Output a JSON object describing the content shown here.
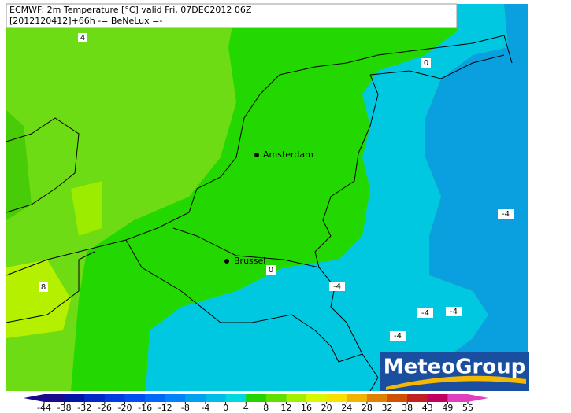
{
  "header": {
    "line1": "ECMWF: 2m Temperature [°C] valid Fri, 07DEC2012 06Z",
    "line2": "[2012120412]+66h  -= BeNeLux =-"
  },
  "cities": [
    {
      "name": "Amsterdam"
    },
    {
      "name": "Brussel"
    }
  ],
  "contour_labels": [
    4,
    0,
    -4,
    8,
    0,
    -4,
    -4,
    -4,
    -4
  ],
  "logo": "MeteoGroup",
  "colorbar": {
    "ticks": [
      -44,
      -38,
      -32,
      -26,
      -20,
      -16,
      -12,
      -8,
      -4,
      0,
      4,
      8,
      12,
      16,
      20,
      24,
      28,
      32,
      38,
      43,
      49,
      55
    ],
    "colors": [
      "#1a0a8c",
      "#0014a8",
      "#0028c8",
      "#003ce0",
      "#0050f0",
      "#0068f8",
      "#0084f8",
      "#00a0f0",
      "#00bce8",
      "#00d8e0",
      "#22d400",
      "#60e000",
      "#a0f000",
      "#d8f800",
      "#f8e000",
      "#f0b400",
      "#e08000",
      "#d05000",
      "#c02020",
      "#c00060",
      "#e040c0"
    ]
  }
}
